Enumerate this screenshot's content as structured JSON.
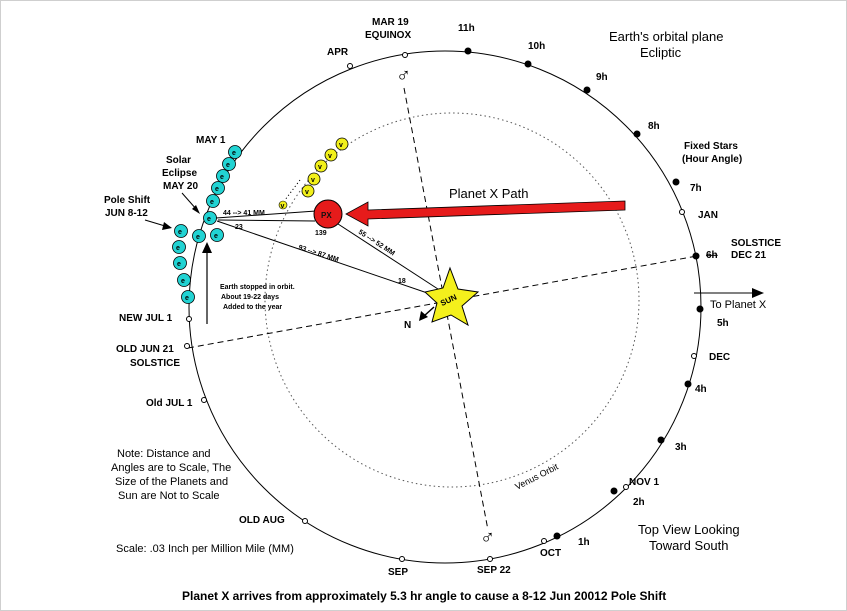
{
  "header": {
    "title_line1": "Earth's orbital plane",
    "title_line2": "Ecliptic"
  },
  "months": {
    "mar19": "MAR 19",
    "equinox": "EQUINOX",
    "apr": "APR",
    "may1": "MAY 1",
    "jan": "JAN",
    "solstice_dec": "SOLSTICE",
    "dec21": "DEC 21",
    "dec": "DEC",
    "nov1": "NOV 1",
    "oct": "OCT",
    "sep22": "SEP 22",
    "sep": "SEP",
    "old_aug": "OLD AUG",
    "old_jul1": "Old JUL 1",
    "old_jun21": "OLD JUN 21",
    "solstice_jun": "SOLSTICE",
    "new_jul1": "NEW JUL 1"
  },
  "hours": {
    "h11": "11h",
    "h10": "10h",
    "h9": "9h",
    "h8": "8h",
    "h7": "7h",
    "h6": "6h",
    "h5": "5h",
    "h4": "4h",
    "h3": "3h",
    "h2": "2h",
    "h1": "1h"
  },
  "fixed_stars": {
    "line1": "Fixed Stars",
    "line2": "(Hour Angle)"
  },
  "eclipse": {
    "line1": "Solar",
    "line2": "Eclipse",
    "line3": "MAY 20"
  },
  "pole_shift": {
    "line1": "Pole Shift",
    "line2": "JUN 8-12"
  },
  "planet_x_path": "Planet X Path",
  "to_planet_x": "To Planet X",
  "venus_orbit": "Venus Orbit",
  "sun_label": "SUN",
  "north_label": "N",
  "px_label": "PX",
  "earth_letter": "e",
  "venus_letter": "v",
  "mars_symbol": "♂",
  "measurements": {
    "m44_41": "44 --> 41 MM",
    "m23": "23",
    "m139": "139",
    "m55_52": "55 --> 52 MM",
    "m93_87": "93 --> 87 MM",
    "m18": "18"
  },
  "earth_note": {
    "line1": "Earth stopped in orbit.",
    "line2": "About 19-22 days",
    "line3": "Added to the year"
  },
  "scale_note": {
    "line1": "Note: Distance and",
    "line2": "Angles are to Scale, The",
    "line3": "Size of the Planets and",
    "line4": "Sun are Not to Scale"
  },
  "scale": "Scale: .03 Inch per Million Mile (MM)",
  "view_note": {
    "line1": "Top View Looking",
    "line2": "Toward South"
  },
  "caption": "Planet X arrives from approximately 5.3 hr angle to cause a 8-12 Jun 20012 Pole Shift",
  "colors": {
    "earth": "#22d3d3",
    "venus": "#f2f01a",
    "planet_x": "#e61b1b",
    "sun": "#f4f01c",
    "arrow": "#e61b1b"
  }
}
